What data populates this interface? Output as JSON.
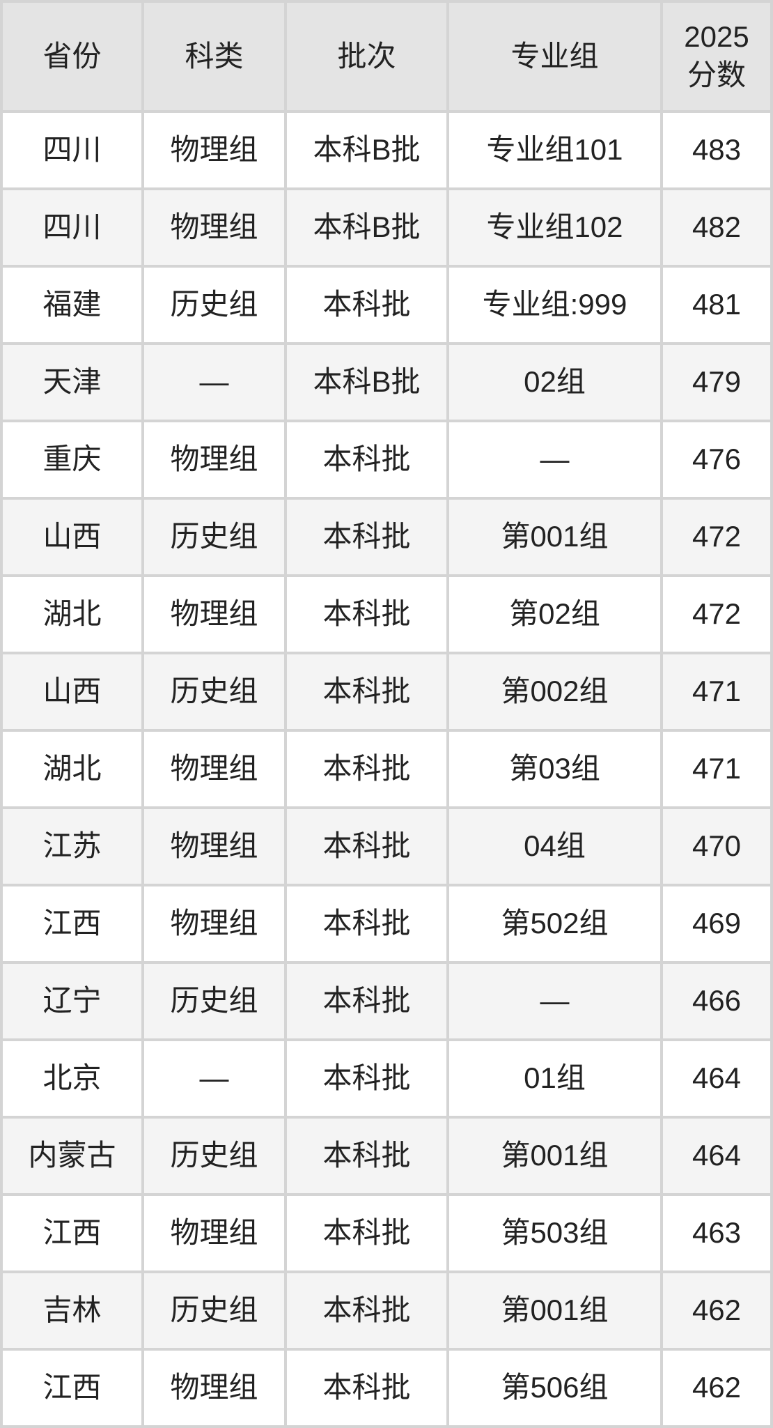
{
  "colors": {
    "grid_line": "#d4d4d4",
    "header_bg": "#e4e4e4",
    "row_bg": "#ffffff",
    "row_alt_bg": "#f4f4f4",
    "text": "#222222"
  },
  "table": {
    "columns": [
      {
        "key": "province",
        "label": "省份"
      },
      {
        "key": "category",
        "label": "科类"
      },
      {
        "key": "batch",
        "label": "批次"
      },
      {
        "key": "group",
        "label": "专业组"
      },
      {
        "key": "score",
        "label": "2025\n分数"
      }
    ],
    "rows": [
      {
        "province": "四川",
        "category": "物理组",
        "batch": "本科B批",
        "group": "专业组101",
        "score": "483"
      },
      {
        "province": "四川",
        "category": "物理组",
        "batch": "本科B批",
        "group": "专业组102",
        "score": "482"
      },
      {
        "province": "福建",
        "category": "历史组",
        "batch": "本科批",
        "group": "专业组:999",
        "score": "481"
      },
      {
        "province": "天津",
        "category": "—",
        "batch": "本科B批",
        "group": "02组",
        "score": "479"
      },
      {
        "province": "重庆",
        "category": "物理组",
        "batch": "本科批",
        "group": "—",
        "score": "476"
      },
      {
        "province": "山西",
        "category": "历史组",
        "batch": "本科批",
        "group": "第001组",
        "score": "472"
      },
      {
        "province": "湖北",
        "category": "物理组",
        "batch": "本科批",
        "group": "第02组",
        "score": "472"
      },
      {
        "province": "山西",
        "category": "历史组",
        "batch": "本科批",
        "group": "第002组",
        "score": "471"
      },
      {
        "province": "湖北",
        "category": "物理组",
        "batch": "本科批",
        "group": "第03组",
        "score": "471"
      },
      {
        "province": "江苏",
        "category": "物理组",
        "batch": "本科批",
        "group": "04组",
        "score": "470"
      },
      {
        "province": "江西",
        "category": "物理组",
        "batch": "本科批",
        "group": "第502组",
        "score": "469"
      },
      {
        "province": "辽宁",
        "category": "历史组",
        "batch": "本科批",
        "group": "—",
        "score": "466"
      },
      {
        "province": "北京",
        "category": "—",
        "batch": "本科批",
        "group": "01组",
        "score": "464"
      },
      {
        "province": "内蒙古",
        "category": "历史组",
        "batch": "本科批",
        "group": "第001组",
        "score": "464"
      },
      {
        "province": "江西",
        "category": "物理组",
        "batch": "本科批",
        "group": "第503组",
        "score": "463"
      },
      {
        "province": "吉林",
        "category": "历史组",
        "batch": "本科批",
        "group": "第001组",
        "score": "462"
      },
      {
        "province": "江西",
        "category": "物理组",
        "batch": "本科批",
        "group": "第506组",
        "score": "462"
      }
    ]
  },
  "chart_data": {
    "type": "table",
    "title": "2025分数 admission score table",
    "columns": [
      "省份",
      "科类",
      "批次",
      "专业组",
      "2025分数"
    ],
    "rows": [
      [
        "四川",
        "物理组",
        "本科B批",
        "专业组101",
        483
      ],
      [
        "四川",
        "物理组",
        "本科B批",
        "专业组102",
        482
      ],
      [
        "福建",
        "历史组",
        "本科批",
        "专业组:999",
        481
      ],
      [
        "天津",
        "—",
        "本科B批",
        "02组",
        479
      ],
      [
        "重庆",
        "物理组",
        "本科批",
        "—",
        476
      ],
      [
        "山西",
        "历史组",
        "本科批",
        "第001组",
        472
      ],
      [
        "湖北",
        "物理组",
        "本科批",
        "第02组",
        472
      ],
      [
        "山西",
        "历史组",
        "本科批",
        "第002组",
        471
      ],
      [
        "湖北",
        "物理组",
        "本科批",
        "第03组",
        471
      ],
      [
        "江苏",
        "物理组",
        "本科批",
        "04组",
        470
      ],
      [
        "江西",
        "物理组",
        "本科批",
        "第502组",
        469
      ],
      [
        "辽宁",
        "历史组",
        "本科批",
        "—",
        466
      ],
      [
        "北京",
        "—",
        "本科批",
        "01组",
        464
      ],
      [
        "内蒙古",
        "历史组",
        "本科批",
        "第001组",
        464
      ],
      [
        "江西",
        "物理组",
        "本科批",
        "第503组",
        463
      ],
      [
        "吉林",
        "历史组",
        "本科批",
        "第001组",
        462
      ],
      [
        "江西",
        "物理组",
        "本科批",
        "第506组",
        462
      ]
    ]
  }
}
